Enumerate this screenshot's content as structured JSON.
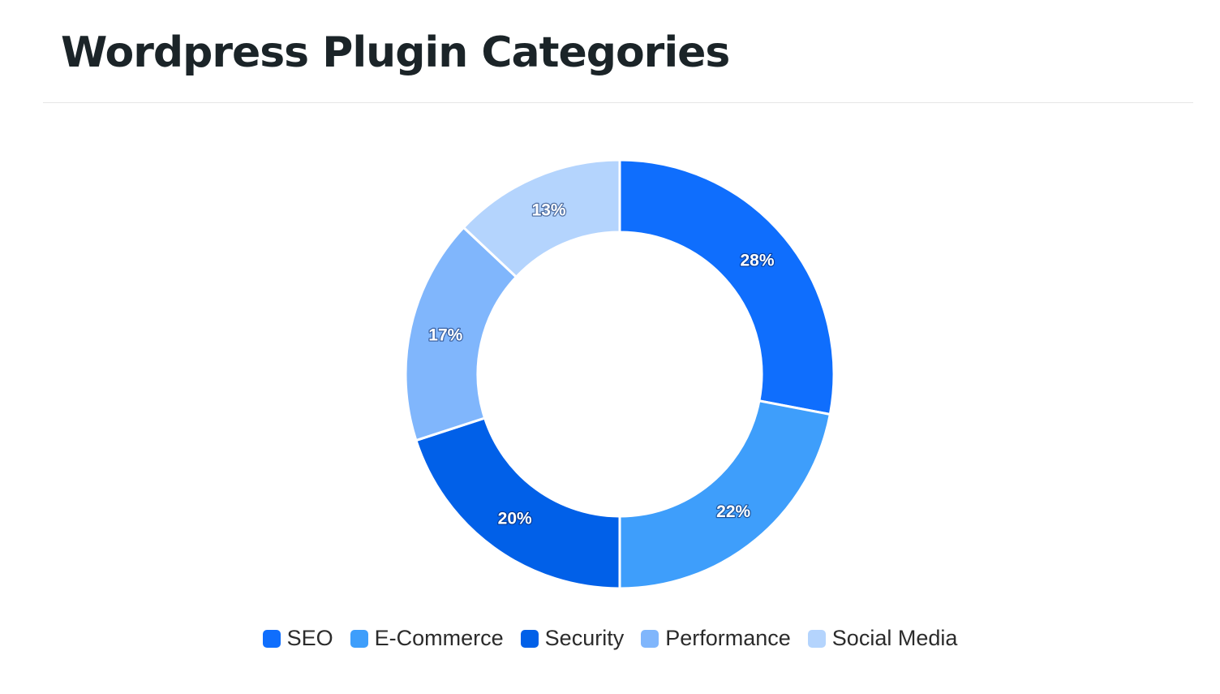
{
  "page": {
    "title": "Wordpress Plugin Categories"
  },
  "chart_data": {
    "type": "pie",
    "variant": "donut",
    "title": "Wordpress Plugin Categories",
    "categories": [
      "SEO",
      "E-Commerce",
      "Security",
      "Performance",
      "Social Media"
    ],
    "values": [
      28,
      22,
      20,
      17,
      13
    ],
    "labels": [
      "28%",
      "22%",
      "20%",
      "17%",
      "13%"
    ],
    "unit": "%",
    "colors": [
      "#0f6efd",
      "#3e9efb",
      "#0160e8",
      "#80b6fc",
      "#b4d4fd"
    ],
    "legend": {
      "placement": "bottom",
      "entries": [
        {
          "label": "SEO",
          "color": "#0f6efd"
        },
        {
          "label": "E-Commerce",
          "color": "#3e9efb"
        },
        {
          "label": "Security",
          "color": "#0160e8"
        },
        {
          "label": "Performance",
          "color": "#80b6fc"
        },
        {
          "label": "Social Media",
          "color": "#b4d4fd"
        }
      ]
    }
  }
}
